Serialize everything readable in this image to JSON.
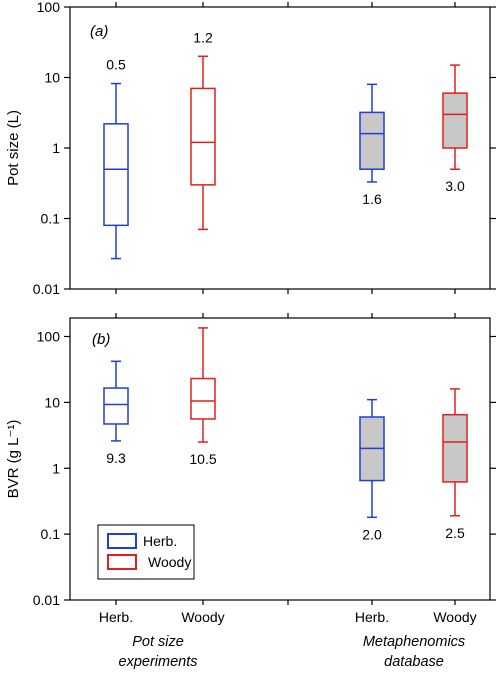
{
  "chart_data": [
    {
      "type": "box",
      "panel_tag": "(a)",
      "ylabel": "Pot size (L)",
      "yscale": "log",
      "ylim": [
        0.01,
        100
      ],
      "yticks": [
        0.01,
        0.1,
        1,
        10,
        100
      ],
      "ytick_labels": [
        "0.01",
        "0.1",
        "1",
        "10",
        "100"
      ],
      "boxes": [
        {
          "group": "Pot size experiments",
          "category": "Herb.",
          "color": "#1f3fd8",
          "fill": "#ffffff",
          "whisker_low": 0.027,
          "q1": 0.08,
          "median": 0.5,
          "q3": 2.2,
          "whisker_high": 8.2,
          "label": "0.5",
          "label_pos": "above"
        },
        {
          "group": "Pot size experiments",
          "category": "Woody",
          "color": "#e0201c",
          "fill": "#ffffff",
          "whisker_low": 0.07,
          "q1": 0.3,
          "median": 1.2,
          "q3": 7.0,
          "whisker_high": 20,
          "label": "1.2",
          "label_pos": "above"
        },
        {
          "group": "Metaphenomics database",
          "category": "Herb.",
          "color": "#1f3fd8",
          "fill": "#c8c8c8",
          "whisker_low": 0.33,
          "q1": 0.5,
          "median": 1.6,
          "q3": 3.2,
          "whisker_high": 8.0,
          "label": "1.6",
          "label_pos": "below"
        },
        {
          "group": "Metaphenomics database",
          "category": "Woody",
          "color": "#e0201c",
          "fill": "#c8c8c8",
          "whisker_low": 0.5,
          "q1": 1.0,
          "median": 3.0,
          "q3": 6.0,
          "whisker_high": 15,
          "label": "3.0",
          "label_pos": "below"
        }
      ]
    },
    {
      "type": "box",
      "panel_tag": "(b)",
      "ylabel": "BVR (g L⁻¹)",
      "yscale": "log",
      "ylim": [
        0.01,
        100
      ],
      "yticks": [
        0.01,
        0.1,
        1,
        10,
        100
      ],
      "ytick_labels": [
        "0.01",
        "0.1",
        "1",
        "10",
        "100"
      ],
      "boxes": [
        {
          "group": "Pot size experiments",
          "category": "Herb.",
          "color": "#1f3fd8",
          "fill": "#ffffff",
          "whisker_low": 2.6,
          "q1": 4.7,
          "median": 9.3,
          "q3": 16.5,
          "whisker_high": 42,
          "label": "9.3",
          "label_pos": "below"
        },
        {
          "group": "Pot size experiments",
          "category": "Woody",
          "color": "#e0201c",
          "fill": "#ffffff",
          "whisker_low": 2.5,
          "q1": 5.6,
          "median": 10.5,
          "q3": 23,
          "whisker_high": 135,
          "label": "10.5",
          "label_pos": "below"
        },
        {
          "group": "Metaphenomics database",
          "category": "Herb.",
          "color": "#1f3fd8",
          "fill": "#c8c8c8",
          "whisker_low": 0.18,
          "q1": 0.65,
          "median": 2.0,
          "q3": 6.0,
          "whisker_high": 11,
          "label": "2.0",
          "label_pos": "below"
        },
        {
          "group": "Metaphenomics database",
          "category": "Woody",
          "color": "#e0201c",
          "fill": "#c8c8c8",
          "whisker_low": 0.19,
          "q1": 0.62,
          "median": 2.5,
          "q3": 6.5,
          "whisker_high": 16,
          "label": "2.5",
          "label_pos": "below"
        }
      ],
      "legend": {
        "placement": "bottom-left",
        "entries": [
          {
            "name": "Herb.",
            "color": "#1f3fd8"
          },
          {
            "name": "Woody",
            "color": "#e0201c"
          }
        ]
      }
    }
  ],
  "x_axis": {
    "categories": [
      "Herb.",
      "Woody",
      "Herb.",
      "Woody"
    ],
    "groups": [
      {
        "line1": "Pot size",
        "line2": "experiments"
      },
      {
        "line1": "Metaphenomics",
        "line2": "database"
      }
    ]
  }
}
